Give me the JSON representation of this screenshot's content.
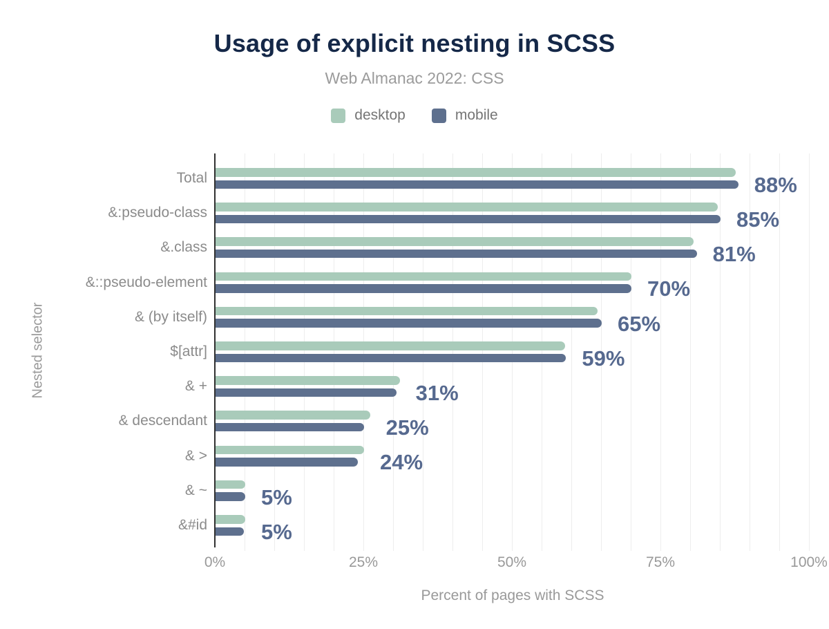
{
  "header": {
    "title": "Usage of explicit nesting in SCSS",
    "subtitle": "Web Almanac 2022: CSS"
  },
  "legend": {
    "items": [
      {
        "label": "desktop",
        "color": "#a9cbba"
      },
      {
        "label": "mobile",
        "color": "#5e708e"
      }
    ]
  },
  "chart_data": {
    "type": "bar",
    "orientation": "horizontal",
    "title": "Usage of explicit nesting in SCSS",
    "subtitle": "Web Almanac 2022: CSS",
    "categories": [
      "Total",
      "&:pseudo-class",
      "&.class",
      "&::pseudo-element",
      "& (by itself)",
      "$[attr]",
      "& +",
      "& descendant",
      "& >",
      "& ~",
      "&#id"
    ],
    "series": [
      {
        "name": "desktop",
        "color": "#a9cbba",
        "values": [
          87.5,
          84.5,
          80.5,
          70,
          64.3,
          58.8,
          31,
          26,
          25,
          5,
          5
        ]
      },
      {
        "name": "mobile",
        "color": "#5e708e",
        "values": [
          88,
          85,
          81,
          70,
          65,
          59,
          30.5,
          25,
          24,
          5,
          4.8
        ]
      }
    ],
    "value_labels": [
      "88%",
      "85%",
      "81%",
      "70%",
      "65%",
      "59%",
      "31%",
      "25%",
      "24%",
      "5%",
      "5%"
    ],
    "xlabel": "Percent of pages with SCSS",
    "ylabel": "Nested selector",
    "xlim": [
      0,
      100
    ],
    "xticks": [
      "0%",
      "25%",
      "50%",
      "75%",
      "100%"
    ],
    "grid": "vertical minor gridlines every 5%",
    "legend_position": "top center"
  },
  "colors": {
    "title": "#152848",
    "subtitle": "#9b9b9b",
    "desktop_bar": "#a9cbba",
    "mobile_bar": "#5e708e",
    "value_label": "#56698f",
    "category_label": "#8b8b8b",
    "axis_line": "#303030",
    "gridline": "#ededed",
    "tick_label": "#999999",
    "background": "#ffffff"
  }
}
